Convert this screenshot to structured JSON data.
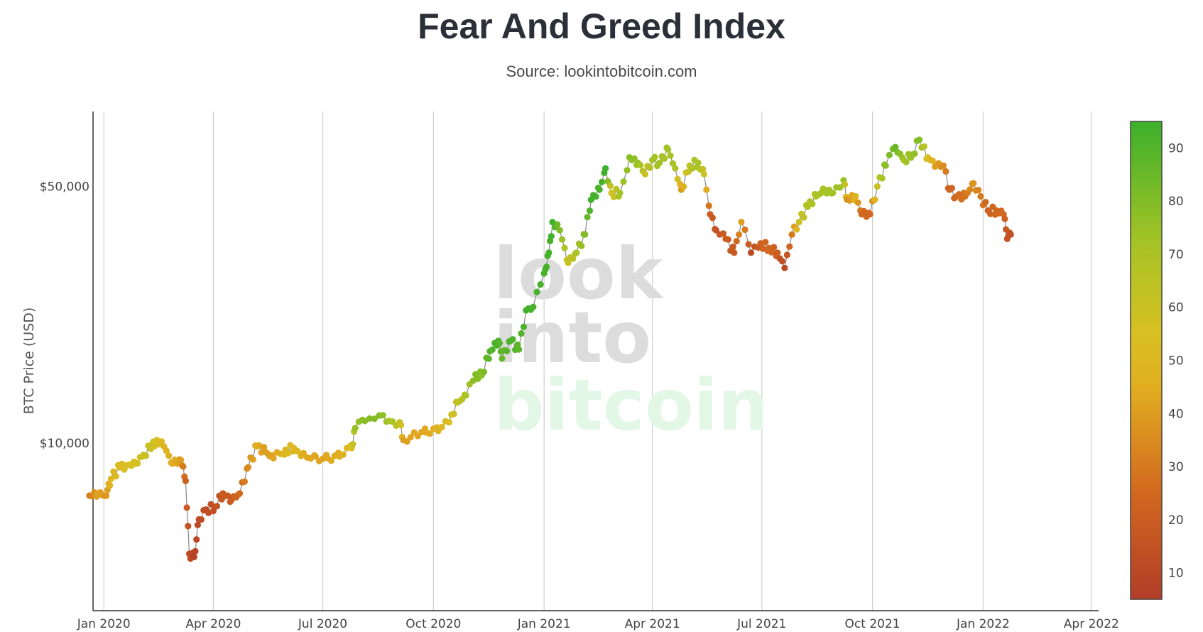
{
  "chart_data": {
    "type": "scatter",
    "title": "Fear And Greed Index",
    "subtitle": "Source: lookintobitcoin.com",
    "ylabel": "BTC Price (USD)",
    "xlabel": "",
    "y_scale": "log",
    "ylim": [
      3500,
      80000
    ],
    "xlim": [
      "2019-12-23",
      "2022-04-07"
    ],
    "x_ticks": [
      {
        "date": "2020-01-01",
        "label": "Jan 2020"
      },
      {
        "date": "2020-04-01",
        "label": "Apr 2020"
      },
      {
        "date": "2020-07-01",
        "label": "Jul 2020"
      },
      {
        "date": "2020-10-01",
        "label": "Oct 2020"
      },
      {
        "date": "2021-01-01",
        "label": "Jan 2021"
      },
      {
        "date": "2021-04-01",
        "label": "Apr 2021"
      },
      {
        "date": "2021-07-01",
        "label": "Jul 2021"
      },
      {
        "date": "2021-10-01",
        "label": "Oct 2021"
      },
      {
        "date": "2022-01-01",
        "label": "Jan 2022"
      },
      {
        "date": "2022-04-01",
        "label": "Apr 2022"
      }
    ],
    "y_ticks": [
      {
        "value": 10000,
        "label": "$10,000"
      },
      {
        "value": 50000,
        "label": "$50,000"
      }
    ],
    "colorbar": {
      "range": [
        5,
        95
      ],
      "ticks": [
        "10",
        "20",
        "30",
        "40",
        "50",
        "60",
        "70",
        "80",
        "90"
      ],
      "stops": [
        {
          "v": 5,
          "color": "#b23d28"
        },
        {
          "v": 25,
          "color": "#d2681f"
        },
        {
          "v": 45,
          "color": "#e1ae20"
        },
        {
          "v": 55,
          "color": "#d8c022"
        },
        {
          "v": 72,
          "color": "#a6c325"
        },
        {
          "v": 95,
          "color": "#3cb02b"
        }
      ]
    },
    "series": [
      {
        "name": "BTC Price",
        "line_color": "#888888",
        "points": [
          [
            "2019-12-20",
            7200,
            30
          ],
          [
            "2019-12-27",
            7300,
            42
          ],
          [
            "2020-01-03",
            7200,
            38
          ],
          [
            "2020-01-07",
            8000,
            50
          ],
          [
            "2020-01-14",
            8600,
            52
          ],
          [
            "2020-01-20",
            8700,
            55
          ],
          [
            "2020-01-27",
            8800,
            55
          ],
          [
            "2020-02-03",
            9300,
            60
          ],
          [
            "2020-02-10",
            9900,
            60
          ],
          [
            "2020-02-14",
            10200,
            55
          ],
          [
            "2020-02-20",
            9800,
            48
          ],
          [
            "2020-02-27",
            8800,
            45
          ],
          [
            "2020-03-05",
            9000,
            40
          ],
          [
            "2020-03-09",
            7900,
            22
          ],
          [
            "2020-03-12",
            5000,
            12
          ],
          [
            "2020-03-16",
            4900,
            8
          ],
          [
            "2020-03-20",
            6200,
            12
          ],
          [
            "2020-03-26",
            6600,
            12
          ],
          [
            "2020-04-02",
            6700,
            14
          ],
          [
            "2020-04-09",
            7300,
            18
          ],
          [
            "2020-04-16",
            7000,
            20
          ],
          [
            "2020-04-23",
            7300,
            25
          ],
          [
            "2020-04-30",
            8600,
            35
          ],
          [
            "2020-05-07",
            9800,
            45
          ],
          [
            "2020-05-14",
            9500,
            40
          ],
          [
            "2020-05-21",
            9100,
            42
          ],
          [
            "2020-05-31",
            9600,
            50
          ],
          [
            "2020-06-07",
            9700,
            52
          ],
          [
            "2020-06-15",
            9400,
            45
          ],
          [
            "2020-06-25",
            9200,
            42
          ],
          [
            "2020-07-05",
            9100,
            43
          ],
          [
            "2020-07-15",
            9200,
            45
          ],
          [
            "2020-07-25",
            9700,
            55
          ],
          [
            "2020-07-28",
            11000,
            75
          ],
          [
            "2020-08-05",
            11500,
            78
          ],
          [
            "2020-08-17",
            11900,
            80
          ],
          [
            "2020-08-25",
            11500,
            72
          ],
          [
            "2020-09-03",
            11400,
            65
          ],
          [
            "2020-09-06",
            10200,
            40
          ],
          [
            "2020-09-15",
            10700,
            43
          ],
          [
            "2020-09-25",
            10700,
            43
          ],
          [
            "2020-10-05",
            10800,
            48
          ],
          [
            "2020-10-14",
            11400,
            55
          ],
          [
            "2020-10-21",
            12900,
            62
          ],
          [
            "2020-10-28",
            13500,
            70
          ],
          [
            "2020-11-05",
            15400,
            80
          ],
          [
            "2020-11-10",
            15300,
            78
          ],
          [
            "2020-11-17",
            17800,
            90
          ],
          [
            "2020-11-24",
            19000,
            92
          ],
          [
            "2020-11-27",
            17000,
            85
          ],
          [
            "2020-12-04",
            19000,
            92
          ],
          [
            "2020-12-11",
            18000,
            88
          ],
          [
            "2020-12-17",
            23000,
            94
          ],
          [
            "2020-12-23",
            23500,
            92
          ],
          [
            "2021-01-01",
            29000,
            93
          ],
          [
            "2021-01-05",
            33000,
            93
          ],
          [
            "2021-01-08",
            40000,
            94
          ],
          [
            "2021-01-14",
            38000,
            80
          ],
          [
            "2021-01-21",
            31000,
            60
          ],
          [
            "2021-01-28",
            33000,
            70
          ],
          [
            "2021-02-04",
            37000,
            80
          ],
          [
            "2021-02-09",
            46000,
            94
          ],
          [
            "2021-02-16",
            49000,
            92
          ],
          [
            "2021-02-21",
            56000,
            95
          ],
          [
            "2021-02-26",
            48000,
            55
          ],
          [
            "2021-03-05",
            48000,
            72
          ],
          [
            "2021-03-13",
            60000,
            78
          ],
          [
            "2021-03-20",
            58000,
            75
          ],
          [
            "2021-03-26",
            54000,
            60
          ],
          [
            "2021-04-01",
            59000,
            72
          ],
          [
            "2021-04-07",
            58000,
            72
          ],
          [
            "2021-04-14",
            63000,
            72
          ],
          [
            "2021-04-20",
            56000,
            70
          ],
          [
            "2021-04-25",
            49000,
            40
          ],
          [
            "2021-05-02",
            57000,
            65
          ],
          [
            "2021-05-09",
            58000,
            72
          ],
          [
            "2021-05-14",
            54000,
            60
          ],
          [
            "2021-05-19",
            42000,
            20
          ],
          [
            "2021-05-24",
            38000,
            15
          ],
          [
            "2021-06-01",
            36000,
            20
          ],
          [
            "2021-06-08",
            33000,
            18
          ],
          [
            "2021-06-14",
            40000,
            40
          ],
          [
            "2021-06-22",
            33000,
            12
          ],
          [
            "2021-06-30",
            35000,
            22
          ],
          [
            "2021-07-07",
            34000,
            25
          ],
          [
            "2021-07-14",
            33000,
            20
          ],
          [
            "2021-07-20",
            30000,
            10
          ],
          [
            "2021-07-26",
            37000,
            30
          ],
          [
            "2021-08-01",
            40000,
            60
          ],
          [
            "2021-08-08",
            44000,
            68
          ],
          [
            "2021-08-15",
            47000,
            70
          ],
          [
            "2021-08-22",
            49000,
            72
          ],
          [
            "2021-08-29",
            48000,
            72
          ],
          [
            "2021-09-07",
            52000,
            75
          ],
          [
            "2021-09-10",
            46000,
            35
          ],
          [
            "2021-09-17",
            47000,
            48
          ],
          [
            "2021-09-22",
            42000,
            25
          ],
          [
            "2021-09-29",
            42000,
            25
          ],
          [
            "2021-10-05",
            50000,
            60
          ],
          [
            "2021-10-12",
            57000,
            78
          ],
          [
            "2021-10-20",
            64000,
            85
          ],
          [
            "2021-10-27",
            59000,
            72
          ],
          [
            "2021-11-03",
            61000,
            75
          ],
          [
            "2021-11-09",
            67000,
            80
          ],
          [
            "2021-11-16",
            60000,
            55
          ],
          [
            "2021-11-23",
            57000,
            40
          ],
          [
            "2021-11-29",
            57000,
            35
          ],
          [
            "2021-12-04",
            49000,
            22
          ],
          [
            "2021-12-10",
            47000,
            25
          ],
          [
            "2021-12-17",
            47000,
            28
          ],
          [
            "2021-12-24",
            51000,
            38
          ],
          [
            "2021-12-30",
            47000,
            30
          ],
          [
            "2022-01-05",
            43000,
            22
          ],
          [
            "2022-01-12",
            43000,
            25
          ],
          [
            "2022-01-18",
            42000,
            25
          ],
          [
            "2022-01-21",
            36000,
            15
          ],
          [
            "2022-01-24",
            37000,
            15
          ]
        ]
      }
    ]
  },
  "watermark": {
    "line1": "look",
    "line2": "into",
    "line3": "bitcoin"
  }
}
